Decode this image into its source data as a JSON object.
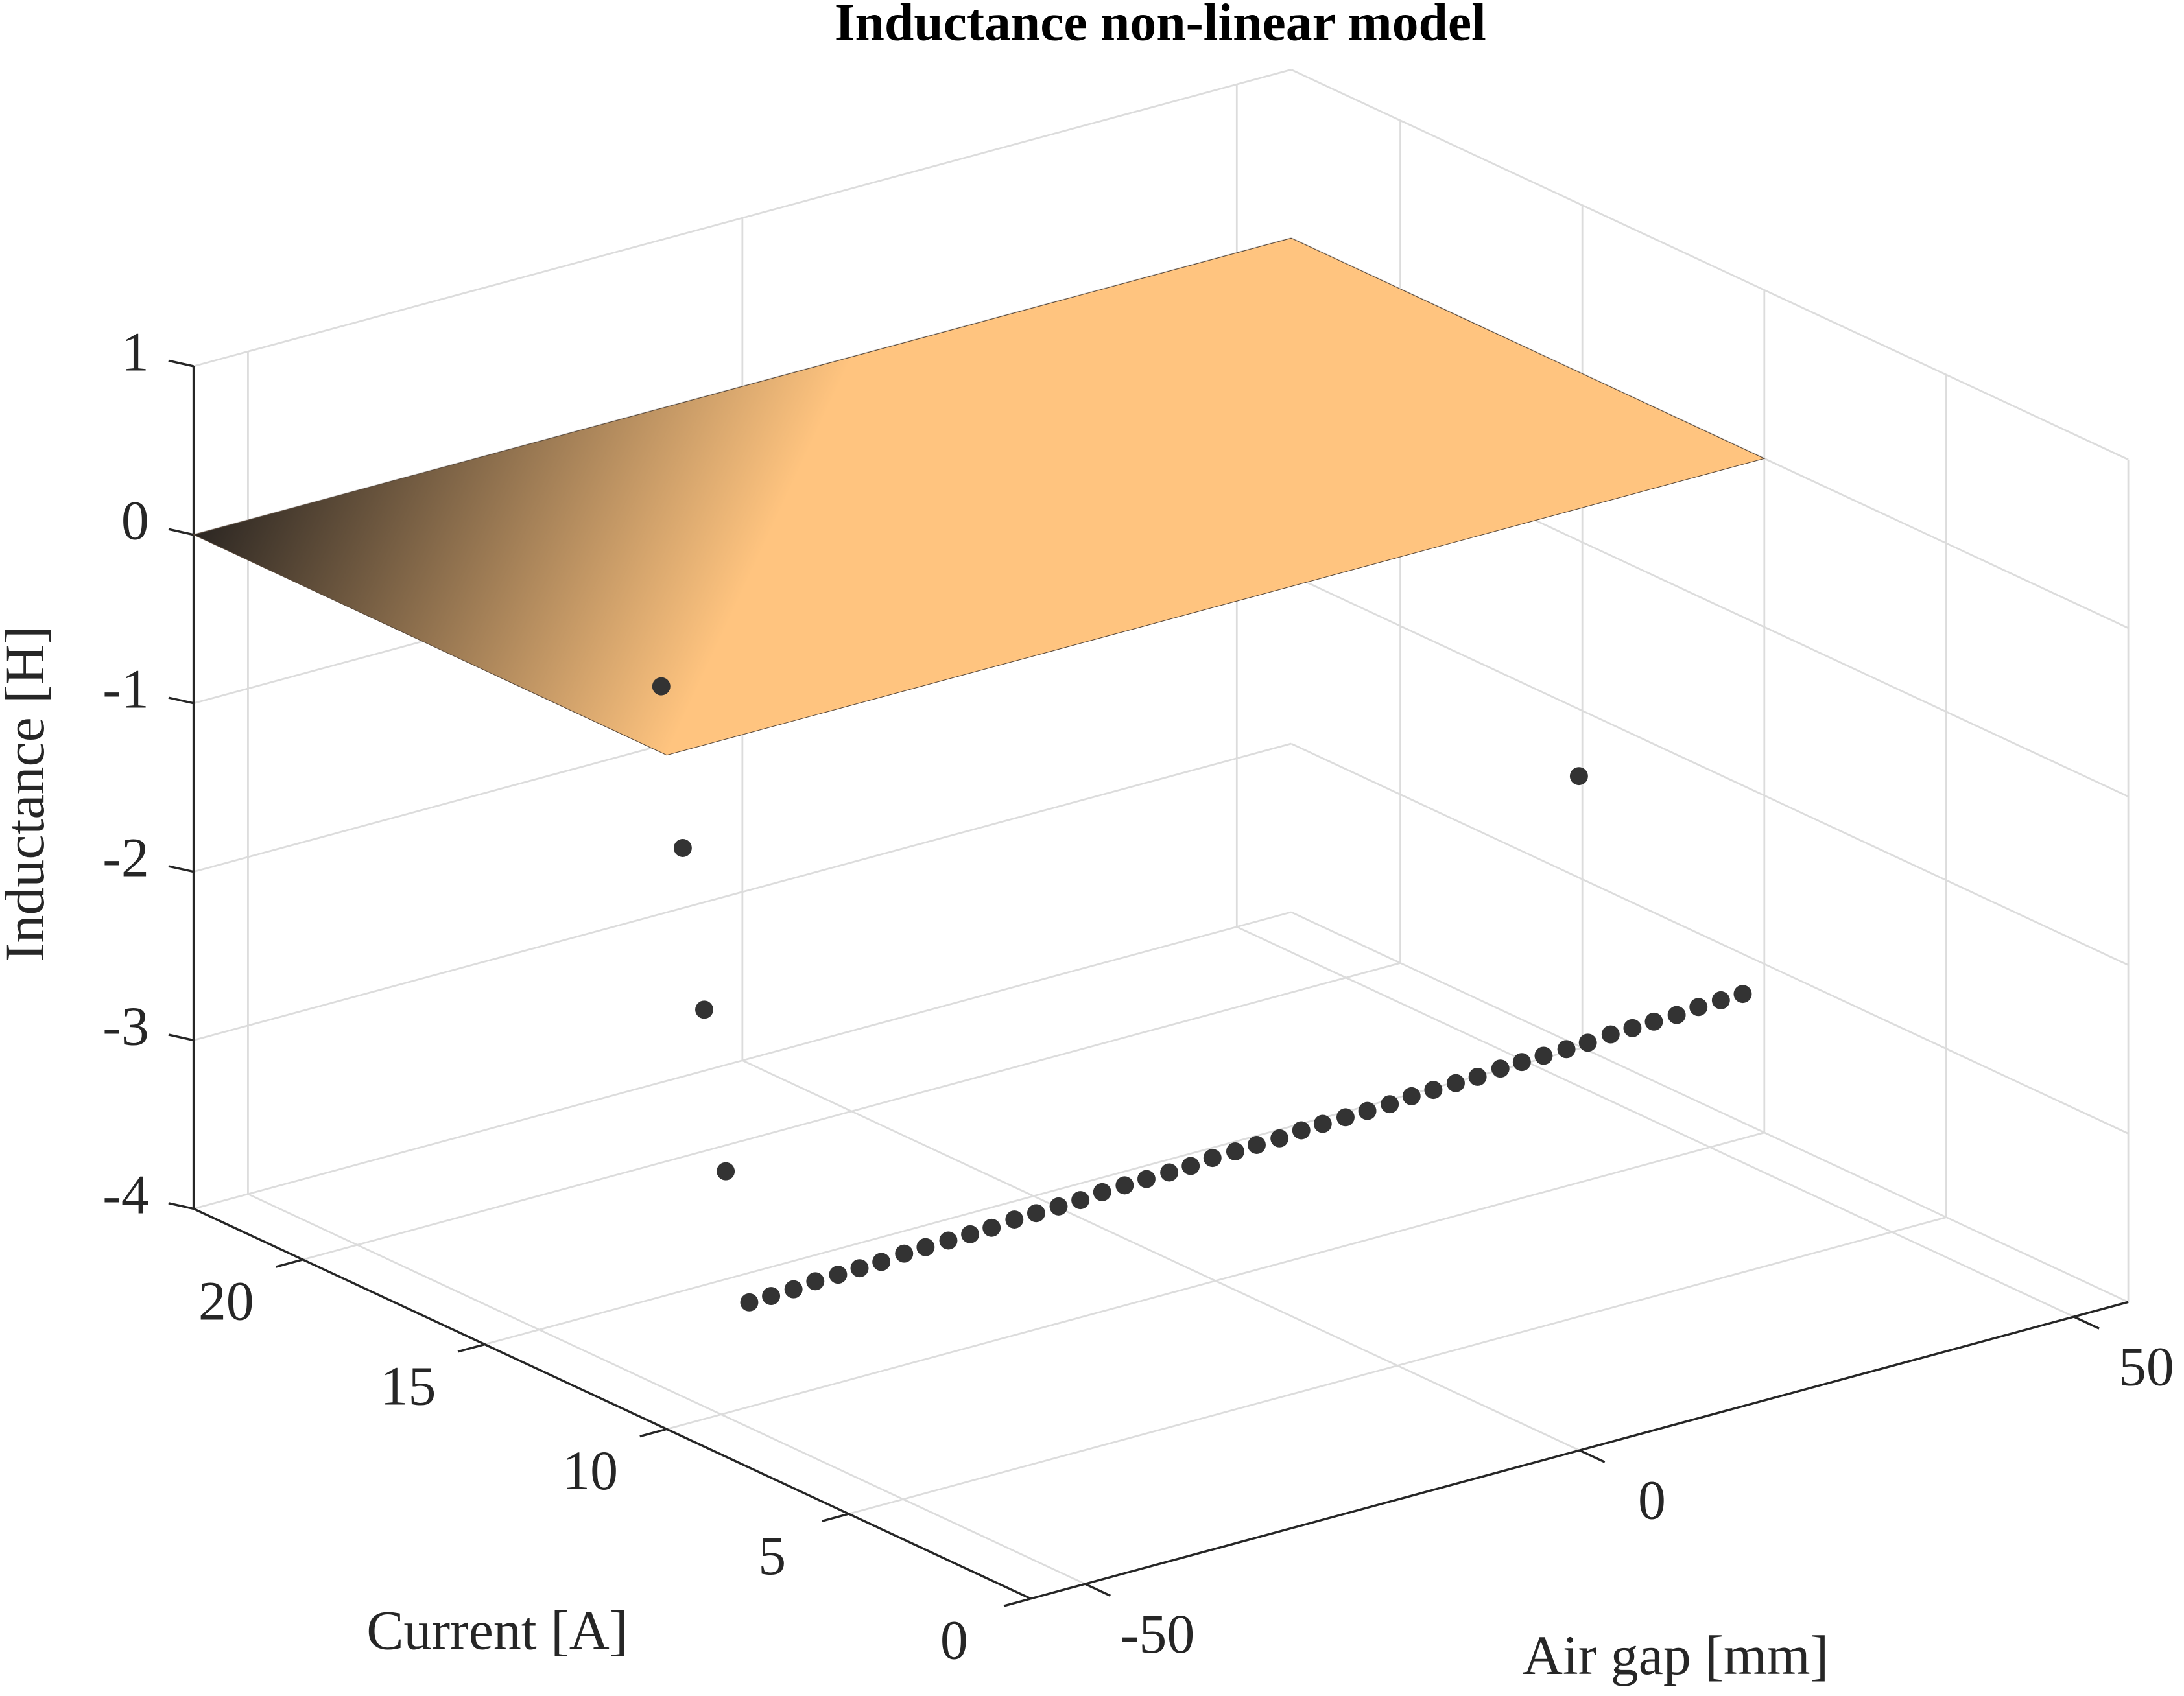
{
  "chart_data": {
    "type": "surface_scatter3d",
    "title": "Inductance non-linear model",
    "xlabel": "Air gap [mm]",
    "ylabel": "Current [A]",
    "zlabel": "Inductance [H]",
    "xlim": [
      -55.5,
      55.5
    ],
    "ylim": [
      0,
      23
    ],
    "zlim": [
      -4,
      1
    ],
    "xticks": [
      -50,
      0,
      50
    ],
    "yticks": [
      0,
      5,
      10,
      15,
      20
    ],
    "zticks": [
      -4,
      -3,
      -2,
      -1,
      0,
      1
    ],
    "grid": true,
    "surface": {
      "x": [
        -55.5,
        55.5
      ],
      "y": [
        10,
        23
      ],
      "z": [
        [
          0,
          0
        ],
        [
          0,
          0
        ]
      ],
      "colormap": [
        "#ffc47f",
        "#2b2622"
      ]
    },
    "scatter": {
      "color": "#333333",
      "x": [
        -16.3,
        -16.3,
        -16.3,
        -16.3,
        50,
        -32.8,
        -31.0,
        -29.1,
        -27.3,
        -25.4,
        -23.6,
        -21.8,
        -19.9,
        -18.1,
        -16.2,
        -14.4,
        -12.6,
        -10.7,
        -8.9,
        -7.0,
        -5.2,
        -3.4,
        -1.5,
        0.3,
        2.2,
        4.0,
        5.8,
        7.7,
        9.5,
        11.4,
        13.2,
        15.0,
        16.9,
        18.7,
        20.6,
        22.4,
        24.2,
        26.1,
        27.9,
        29.8,
        31.6,
        33.4,
        35.3,
        37.1,
        39.0,
        40.8,
        42.6,
        44.5,
        46.3,
        48.2,
        50.0
      ],
      "y": [
        19.03,
        19.62,
        20.21,
        20.8,
        13.6,
        13.9,
        13.79,
        13.69,
        13.58,
        13.47,
        13.37,
        13.26,
        13.15,
        13.05,
        12.94,
        12.83,
        12.73,
        12.62,
        12.51,
        12.41,
        12.3,
        12.19,
        12.09,
        11.98,
        11.87,
        11.77,
        11.66,
        11.55,
        11.45,
        11.34,
        11.23,
        11.13,
        11.02,
        10.91,
        10.81,
        10.7,
        10.59,
        10.49,
        10.38,
        10.27,
        10.17,
        10.06,
        9.95,
        9.85,
        9.74,
        9.63,
        9.53,
        9.42,
        9.31,
        9.21,
        9.1
      ],
      "z": [
        -4,
        -3.1,
        -2.2,
        -1.3,
        -2.16,
        -4.0,
        -3.98,
        -3.96,
        -3.93,
        -3.91,
        -3.89,
        -3.87,
        -3.84,
        -3.82,
        -3.8,
        -3.78,
        -3.76,
        -3.73,
        -3.71,
        -3.69,
        -3.67,
        -3.64,
        -3.62,
        -3.6,
        -3.58,
        -3.56,
        -3.53,
        -3.51,
        -3.49,
        -3.47,
        -3.44,
        -3.42,
        -3.4,
        -3.38,
        -3.36,
        -3.33,
        -3.31,
        -3.29,
        -3.27,
        -3.24,
        -3.22,
        -3.2,
        -3.18,
        -3.16,
        -3.13,
        -3.11,
        -3.09,
        -3.07,
        -3.04,
        -3.02,
        -3.0
      ]
    }
  }
}
